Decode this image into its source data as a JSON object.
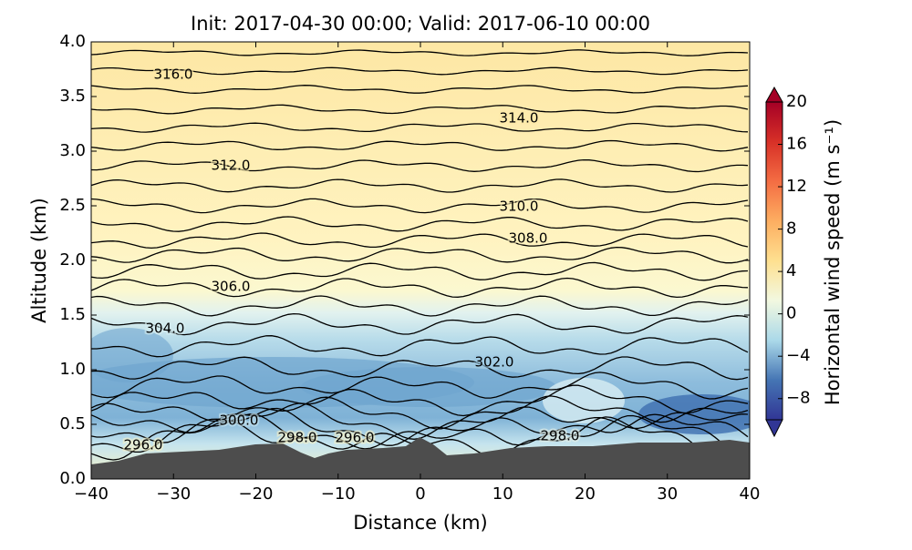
{
  "chart_data": {
    "type": "contour",
    "title": "Init: 2017-04-30 00:00; Valid: 2017-06-10 00:00",
    "x_label": "Distance (km)",
    "y_label": "Altitude (km)",
    "xlim": [
      -40,
      40
    ],
    "xticks": [
      {
        "value": -40,
        "label": "−40"
      },
      {
        "value": -30,
        "label": "−30"
      },
      {
        "value": -20,
        "label": "−20"
      },
      {
        "value": -10,
        "label": "−10"
      },
      0,
      10,
      20,
      30,
      40
    ],
    "ylim": [
      0,
      4
    ],
    "yticks": [
      {
        "value": 0,
        "label": "0.0"
      },
      0.5,
      {
        "value": 1,
        "label": "1.0"
      },
      1.5,
      {
        "value": 2,
        "label": "2.0"
      },
      2.5,
      {
        "value": 3,
        "label": "3.0"
      },
      3.5,
      {
        "value": 4,
        "label": "4.0"
      }
    ],
    "colorbar": {
      "label": "Horizontal wind speed (m s⁻¹)",
      "lim": [
        -10,
        20
      ],
      "ticks": [
        {
          "value": -8,
          "label": "−8"
        },
        {
          "value": -4,
          "label": "−4"
        },
        0,
        4,
        8,
        12,
        16,
        20
      ],
      "colors": [
        "#313695",
        "#4575b4",
        "#abd9e9",
        "#f2f8e0",
        "#fee090",
        "#fdae61",
        "#f46d43",
        "#d73027",
        "#a50026"
      ]
    },
    "contour_labels": [
      {
        "value": 316,
        "label": "316.0"
      },
      {
        "value": 314,
        "label": "314.0"
      },
      {
        "value": 312,
        "label": "312.0"
      },
      {
        "value": 310,
        "label": "310.0"
      },
      {
        "value": 308,
        "label": "308.0"
      },
      {
        "value": 306,
        "label": "306.0"
      },
      {
        "value": 304,
        "label": "304.0"
      },
      {
        "value": 302,
        "label": "302.0"
      },
      {
        "value": 300,
        "label": "300.0"
      },
      {
        "value": 298,
        "label": "298.0"
      },
      {
        "value": 296,
        "label": "296.0"
      },
      {
        "value": 298,
        "label": "298.0"
      },
      {
        "value": 296,
        "label": "296.0"
      }
    ]
  }
}
